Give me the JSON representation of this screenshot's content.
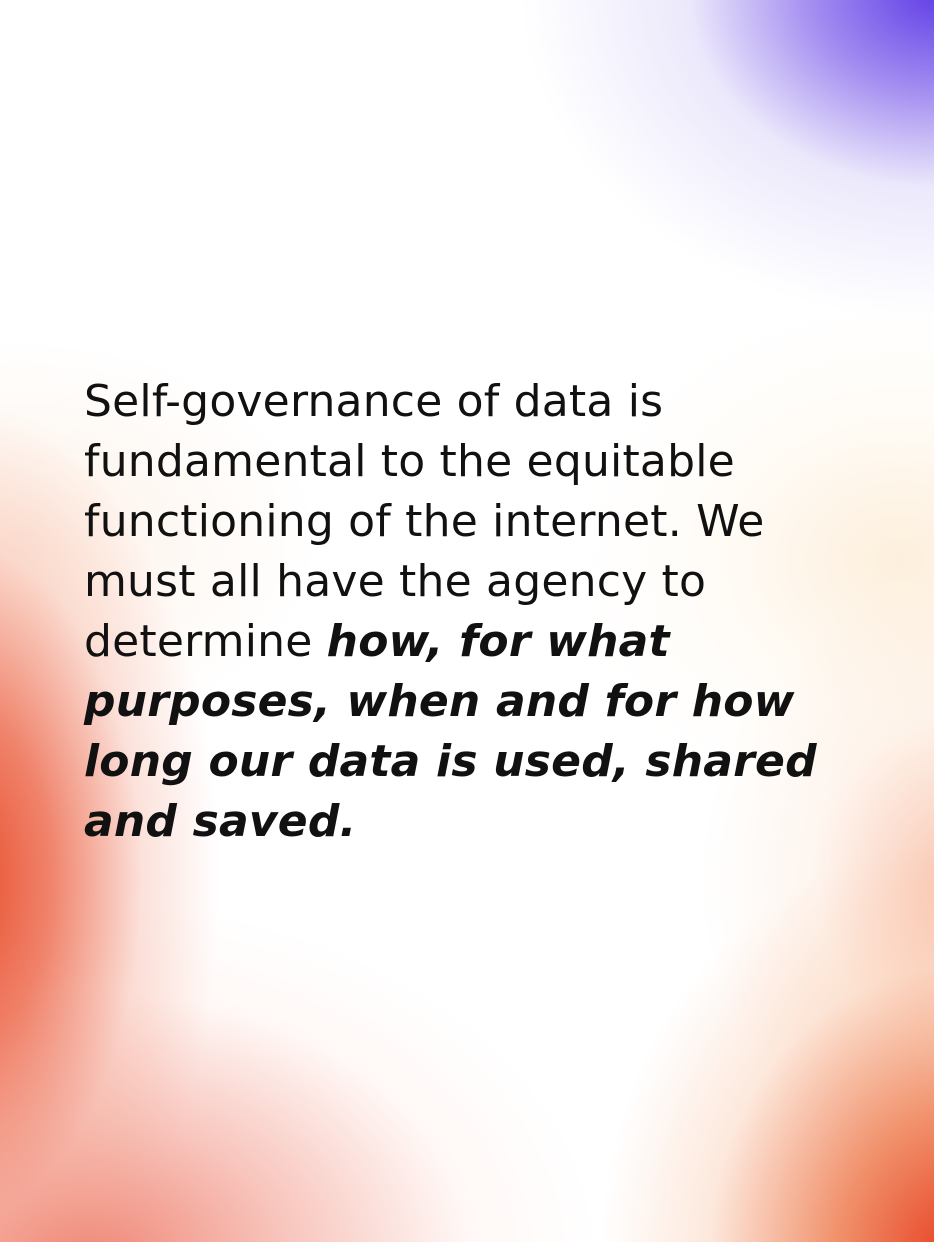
{
  "quote": {
    "lead": "Self-governance of data is fundamental to the equitable functioning of the internet. We must all have the agency to determine ",
    "emphasis": "how, for what purposes, when and for how long our data is used, shared and saved."
  },
  "colors": {
    "purple_accent": "#5f3ce6",
    "orange_accent": "#e84826",
    "text": "#111111",
    "background": "#ffffff"
  }
}
